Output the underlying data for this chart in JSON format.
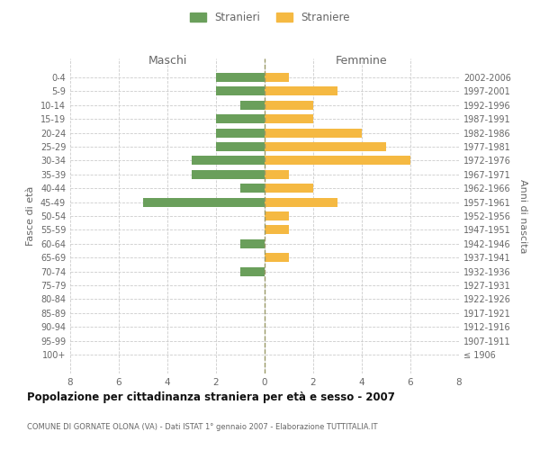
{
  "age_groups": [
    "0-4",
    "5-9",
    "10-14",
    "15-19",
    "20-24",
    "25-29",
    "30-34",
    "35-39",
    "40-44",
    "45-49",
    "50-54",
    "55-59",
    "60-64",
    "65-69",
    "70-74",
    "75-79",
    "80-84",
    "85-89",
    "90-94",
    "95-99",
    "100+"
  ],
  "birth_years": [
    "2002-2006",
    "1997-2001",
    "1992-1996",
    "1987-1991",
    "1982-1986",
    "1977-1981",
    "1972-1976",
    "1967-1971",
    "1962-1966",
    "1957-1961",
    "1952-1956",
    "1947-1951",
    "1942-1946",
    "1937-1941",
    "1932-1936",
    "1927-1931",
    "1922-1926",
    "1917-1921",
    "1912-1916",
    "1907-1911",
    "≤ 1906"
  ],
  "maschi": [
    2,
    2,
    1,
    2,
    2,
    2,
    3,
    3,
    1,
    5,
    0,
    0,
    1,
    0,
    1,
    0,
    0,
    0,
    0,
    0,
    0
  ],
  "femmine": [
    1,
    3,
    2,
    2,
    4,
    5,
    6,
    1,
    2,
    3,
    1,
    1,
    0,
    1,
    0,
    0,
    0,
    0,
    0,
    0,
    0
  ],
  "maschi_color": "#6a9f5b",
  "femmine_color": "#f5b942",
  "bar_height": 0.65,
  "xlim": 8,
  "title": "Popolazione per cittadinanza straniera per età e sesso - 2007",
  "subtitle": "COMUNE DI GORNATE OLONA (VA) - Dati ISTAT 1° gennaio 2007 - Elaborazione TUTTITALIA.IT",
  "ylabel_left": "Fasce di età",
  "ylabel_right": "Anni di nascita",
  "xlabel_maschi": "Maschi",
  "xlabel_femmine": "Femmine",
  "legend_stranieri": "Stranieri",
  "legend_straniere": "Straniere",
  "background_color": "#ffffff",
  "grid_color": "#cccccc",
  "text_color": "#666666",
  "title_color": "#111111",
  "subtitle_color": "#666666"
}
